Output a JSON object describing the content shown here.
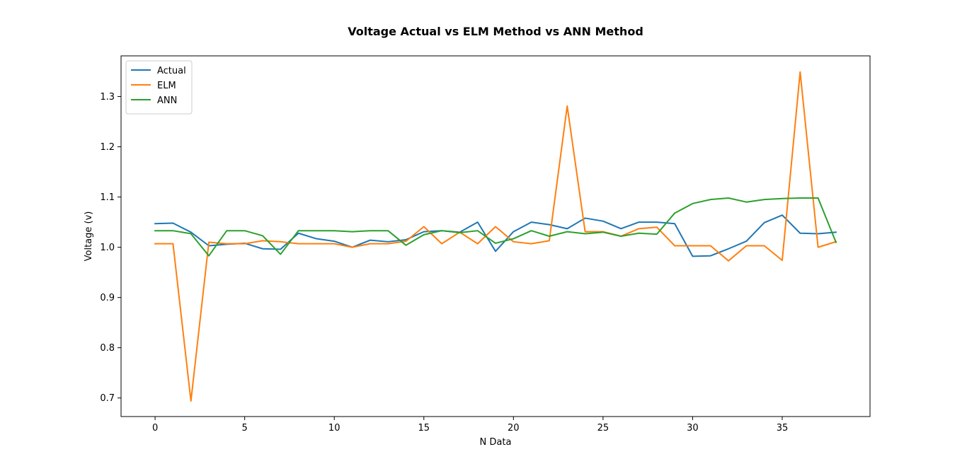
{
  "chart_data": {
    "type": "line",
    "title": "Voltage Actual vs ELM Method vs ANN Method",
    "xlabel": "N Data",
    "ylabel": "Voltage (v)",
    "xlim": [
      -1.9,
      39.9
    ],
    "ylim": [
      0.663,
      1.381
    ],
    "xticks": [
      0,
      5,
      10,
      15,
      20,
      25,
      30,
      35
    ],
    "yticks": [
      0.7,
      0.8,
      0.9,
      1.0,
      1.1,
      1.2,
      1.3
    ],
    "ytick_labels": [
      "0.7",
      "0.8",
      "0.9",
      "1.0",
      "1.1",
      "1.2",
      "1.3"
    ],
    "grid": false,
    "legend_position": "top-left",
    "x": [
      0,
      1,
      2,
      3,
      4,
      5,
      6,
      7,
      8,
      9,
      10,
      11,
      12,
      13,
      14,
      15,
      16,
      17,
      18,
      19,
      20,
      21,
      22,
      23,
      24,
      25,
      26,
      27,
      28,
      29,
      30,
      31,
      32,
      33,
      34,
      35,
      36,
      37,
      38
    ],
    "series": [
      {
        "name": "Actual",
        "color": "#1f77b4",
        "values": [
          1.047,
          1.048,
          1.03,
          1.003,
          1.006,
          1.008,
          0.997,
          0.996,
          1.028,
          1.017,
          1.012,
          1.0,
          1.014,
          1.011,
          1.015,
          1.031,
          1.033,
          1.03,
          1.05,
          0.992,
          1.031,
          1.05,
          1.045,
          1.037,
          1.058,
          1.052,
          1.037,
          1.05,
          1.05,
          1.047,
          0.982,
          0.983,
          0.997,
          1.012,
          1.049,
          1.064,
          1.028,
          1.027,
          1.03
        ]
      },
      {
        "name": "ELM",
        "color": "#ff7f0e",
        "values": [
          1.007,
          1.007,
          0.694,
          1.01,
          1.007,
          1.007,
          1.013,
          1.011,
          1.007,
          1.007,
          1.007,
          1.0,
          1.007,
          1.007,
          1.012,
          1.041,
          1.007,
          1.03,
          1.007,
          1.041,
          1.011,
          1.007,
          1.013,
          1.281,
          1.031,
          1.031,
          1.022,
          1.037,
          1.04,
          1.003,
          1.003,
          1.003,
          0.973,
          1.003,
          1.003,
          0.974,
          1.349,
          1.0,
          1.011
        ]
      },
      {
        "name": "ANN",
        "color": "#2ca02c",
        "values": [
          1.033,
          1.033,
          1.027,
          0.983,
          1.033,
          1.033,
          1.023,
          0.986,
          1.033,
          1.033,
          1.033,
          1.031,
          1.033,
          1.033,
          1.004,
          1.025,
          1.033,
          1.029,
          1.033,
          1.008,
          1.017,
          1.033,
          1.022,
          1.031,
          1.027,
          1.03,
          1.022,
          1.028,
          1.026,
          1.068,
          1.087,
          1.095,
          1.098,
          1.09,
          1.095,
          1.097,
          1.098,
          1.098,
          1.01
        ]
      }
    ]
  }
}
